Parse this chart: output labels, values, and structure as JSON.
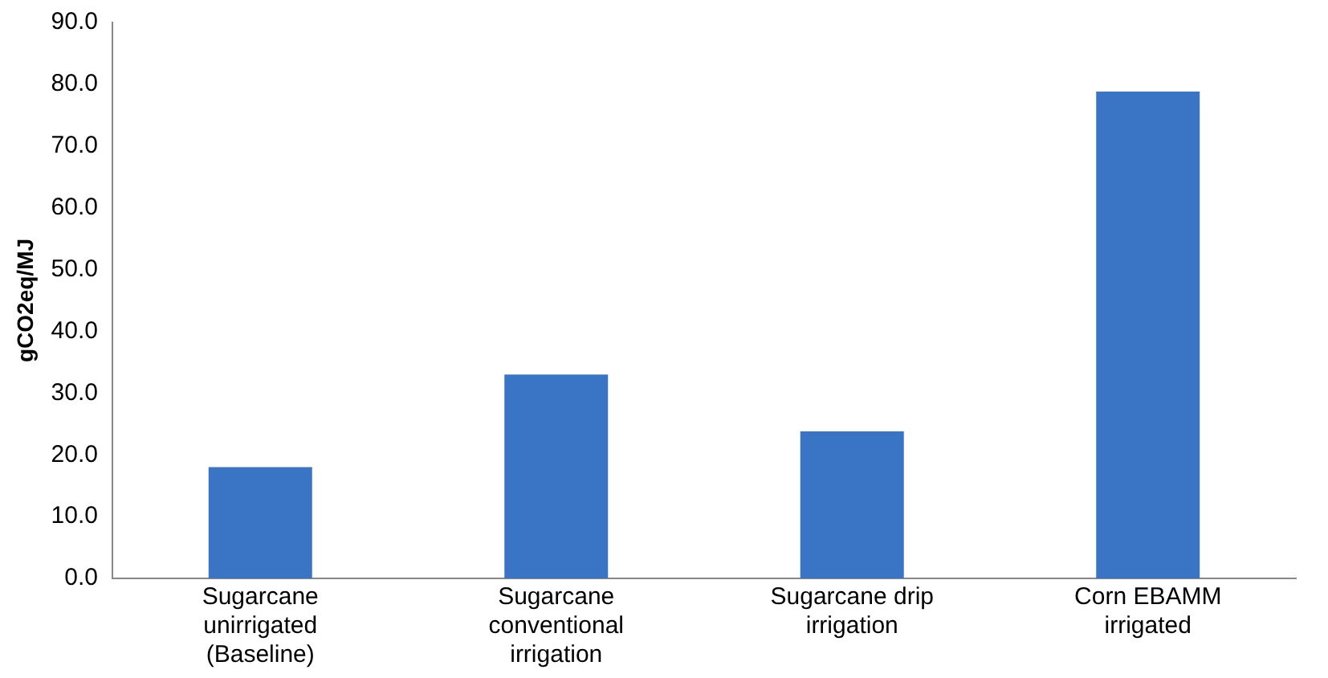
{
  "chart_data": {
    "type": "bar",
    "ylabel": "gCO2eq/MJ",
    "categories": [
      "Sugarcane unirrigated (Baseline)",
      "Sugarcane conventional irrigation",
      "Sugarcane drip irrigation",
      "Corn EBAMM irrigated"
    ],
    "values": [
      18.0,
      33.0,
      23.8,
      78.8
    ],
    "color": "#3a74c4",
    "ylim": [
      0,
      90
    ],
    "yticks": [
      {
        "value": 0,
        "label": "0.0"
      },
      {
        "value": 10,
        "label": "10.0"
      },
      {
        "value": 20,
        "label": "20.0"
      },
      {
        "value": 30,
        "label": "30.0"
      },
      {
        "value": 40,
        "label": "40.0"
      },
      {
        "value": 50,
        "label": "50.0"
      },
      {
        "value": 60,
        "label": "60.0"
      },
      {
        "value": 70,
        "label": "70.0"
      },
      {
        "value": 80,
        "label": "80.0"
      },
      {
        "value": 90,
        "label": "90.0"
      }
    ],
    "grid": false,
    "legend": false
  }
}
